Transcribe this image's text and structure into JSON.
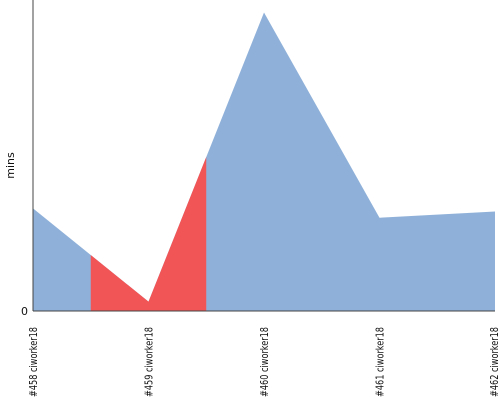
{
  "chart_data": {
    "type": "area",
    "xlabel": "",
    "ylabel": "mins",
    "y_ticks": [
      "0"
    ],
    "ylim": [
      0,
      100
    ],
    "categories": [
      "#458 ciworker18",
      "#459 ciworker18",
      "#460 ciworker18",
      "#461 ciworker18",
      "#462 ciworker18"
    ],
    "values": [
      33,
      3,
      96,
      30,
      32
    ],
    "highlight_range": [
      0.5,
      1.5
    ],
    "colors": {
      "area": "#8fb1d9",
      "highlight": "#f25555",
      "axis": "#444444"
    },
    "grid": false,
    "legend": "none"
  }
}
